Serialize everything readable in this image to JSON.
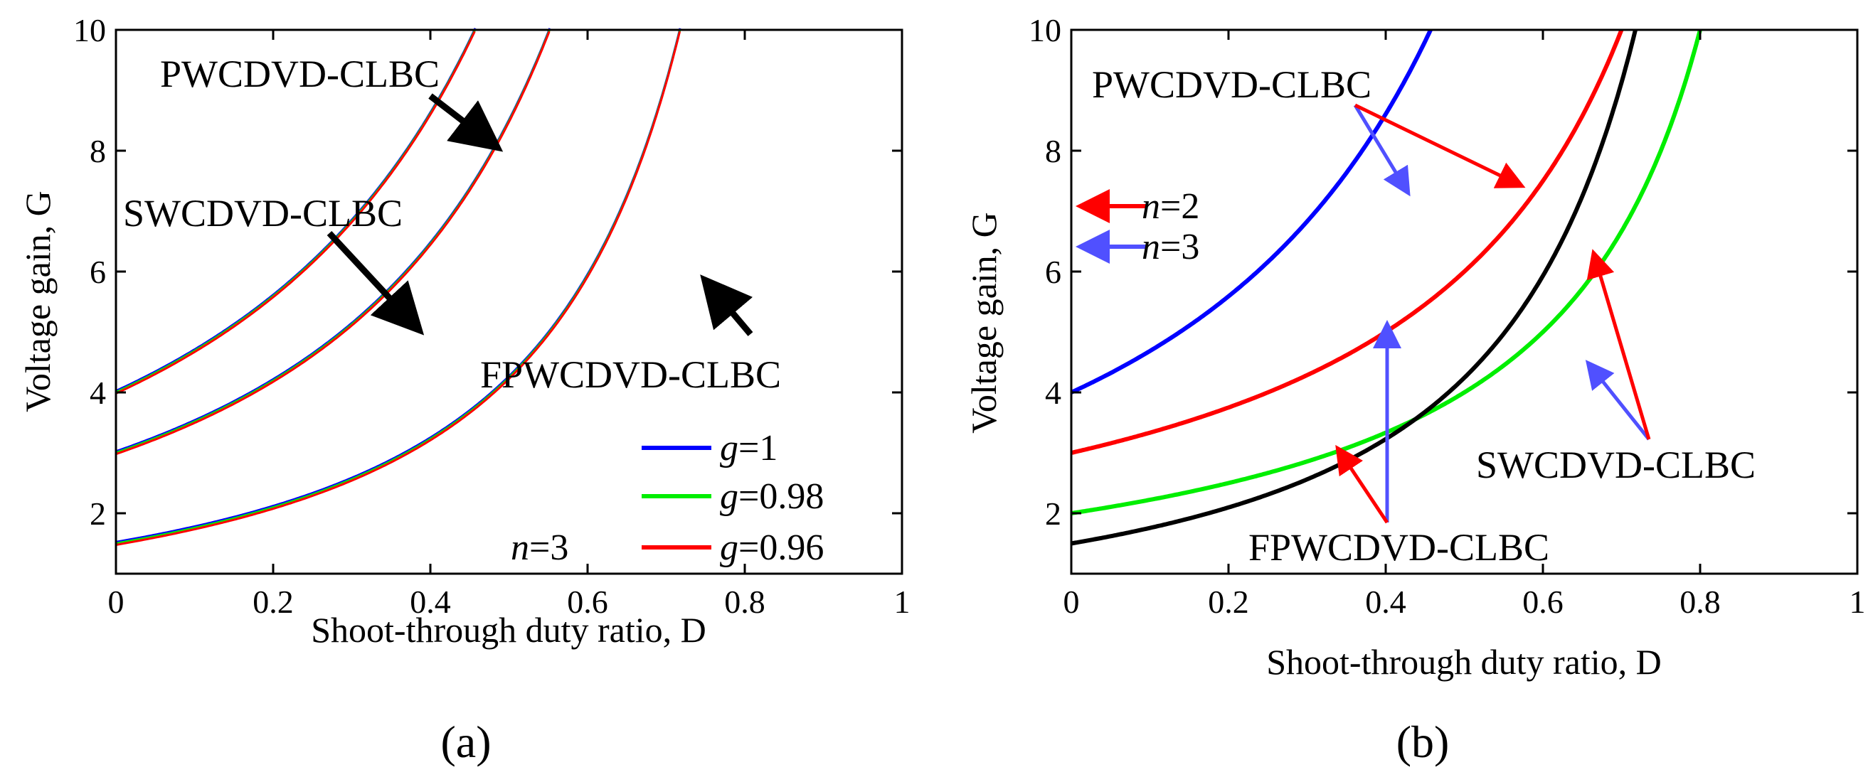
{
  "chart_data": [
    {
      "id": "a",
      "type": "line",
      "panel_label": "(a)",
      "xlabel": "Shoot-through duty ratio, D",
      "ylabel": "Voltage gain, G",
      "xlim": [
        0,
        1
      ],
      "ylim": [
        1,
        10
      ],
      "xticks": [
        "0",
        "0.2",
        "0.4",
        "0.6",
        "0.8",
        "1"
      ],
      "yticks": [
        "2",
        "4",
        "6",
        "8",
        "10"
      ],
      "curve_families": [
        {
          "name": "PWCDVD-CLBC",
          "g0": 4.0,
          "n": 3
        },
        {
          "name": "SWCDVD-CLBC",
          "g0": 3.0,
          "n": 3
        },
        {
          "name": "FPWCDVD-CLBC",
          "g0": 1.5,
          "n": 3
        }
      ],
      "series": [
        {
          "name": "g=1",
          "g": 1.0,
          "color": "#0000ff"
        },
        {
          "name": "g=0.98",
          "g": 0.98,
          "color": "#00ee00"
        },
        {
          "name": "g=0.96",
          "g": 0.96,
          "color": "#ff0000"
        }
      ],
      "legend": [
        {
          "symbol": "g",
          "value": "=1",
          "color": "#0000ff"
        },
        {
          "symbol": "g",
          "value": "=0.98",
          "color": "#00ee00"
        },
        {
          "symbol": "g",
          "value": "=0.96",
          "color": "#ff0000"
        }
      ],
      "annotations": [
        {
          "text": "PWCDVD-CLBC",
          "arrow_color": "#000000"
        },
        {
          "text": "SWCDVD-CLBC",
          "arrow_color": "#000000"
        },
        {
          "text": "FPWCDVD-CLBC",
          "arrow_color": "#000000"
        }
      ],
      "n_label": {
        "symbol": "n",
        "value": "=3"
      }
    },
    {
      "id": "b",
      "type": "line",
      "panel_label": "(b)",
      "xlabel": "Shoot-through duty ratio, D",
      "ylabel": "Voltage gain, G",
      "xlim": [
        0,
        1
      ],
      "ylim": [
        1,
        10
      ],
      "xticks": [
        "0",
        "0.2",
        "0.4",
        "0.6",
        "0.8",
        "1"
      ],
      "yticks": [
        "2",
        "4",
        "6",
        "8",
        "10"
      ],
      "series": [
        {
          "name": "PWCDVD-CLBC, n=3",
          "g0": 4.0,
          "n": 3,
          "color": "#0000ff"
        },
        {
          "name": "PWCDVD-CLBC, n=2",
          "g0": 3.0,
          "n": 2,
          "color": "#ff0000"
        },
        {
          "name": "FPWCDVD-CLBC, n=2",
          "g0": 2.0,
          "n": 2,
          "color": "#00ee00"
        },
        {
          "name": "FPWCDVD-CLBC, n=3",
          "g0": 1.5,
          "n": 3,
          "color": "#000000"
        }
      ],
      "annotations": [
        {
          "text": "PWCDVD-CLBC"
        },
        {
          "text": "SWCDVD-CLBC"
        },
        {
          "text": "FPWCDVD-CLBC"
        }
      ],
      "key": [
        {
          "symbol": "n",
          "value": "=2",
          "color": "#ff0000"
        },
        {
          "symbol": "n",
          "value": "=3",
          "color": "#5050ff"
        }
      ]
    }
  ]
}
